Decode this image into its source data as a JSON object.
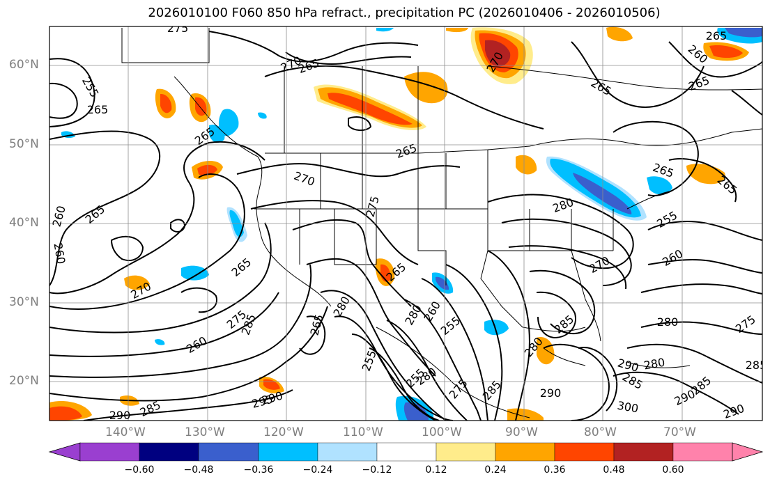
{
  "title": "2026010100 F060 850 hPa refract., precipitation PC (2026010406 - 2026010506)",
  "lat_labels": [
    "60°N",
    "50°N",
    "40°N",
    "30°N",
    "20°N"
  ],
  "lon_labels": [
    "140°W",
    "130°W",
    "120°W",
    "110°W",
    "100°W",
    "90°W",
    "80°W",
    "70°W"
  ],
  "colorbar": {
    "ticks": [
      "−0.60",
      "−0.48",
      "−0.36",
      "−0.24",
      "−0.12",
      "0.12",
      "0.24",
      "0.36",
      "0.48",
      "0.60"
    ],
    "colors": {
      "under": "#9a3fd0",
      "bins": [
        "#000080",
        "#3a5fcd",
        "#00bfff",
        "#b0e2ff",
        "#ffffff",
        "#ffec8b",
        "#ffa500",
        "#ff4500",
        "#b22222"
      ],
      "over": "#ff82ab"
    }
  },
  "contour_labels": [
    "275",
    "270",
    "270",
    "265",
    "260",
    "255",
    "265",
    "265",
    "265",
    "270",
    "265",
    "265",
    "265",
    "260",
    "265",
    "260",
    "255",
    "260",
    "265",
    "265",
    "270",
    "270",
    "275",
    "275",
    "285",
    "280",
    "280",
    "265",
    "260",
    "255",
    "255",
    "280",
    "285",
    "280",
    "285",
    "280",
    "275",
    "285",
    "290",
    "285",
    "290",
    "300",
    "290",
    "285",
    "290",
    "295",
    "290",
    "285",
    "290",
    "275",
    "280",
    "280",
    "255",
    "260",
    "265",
    "265"
  ]
}
